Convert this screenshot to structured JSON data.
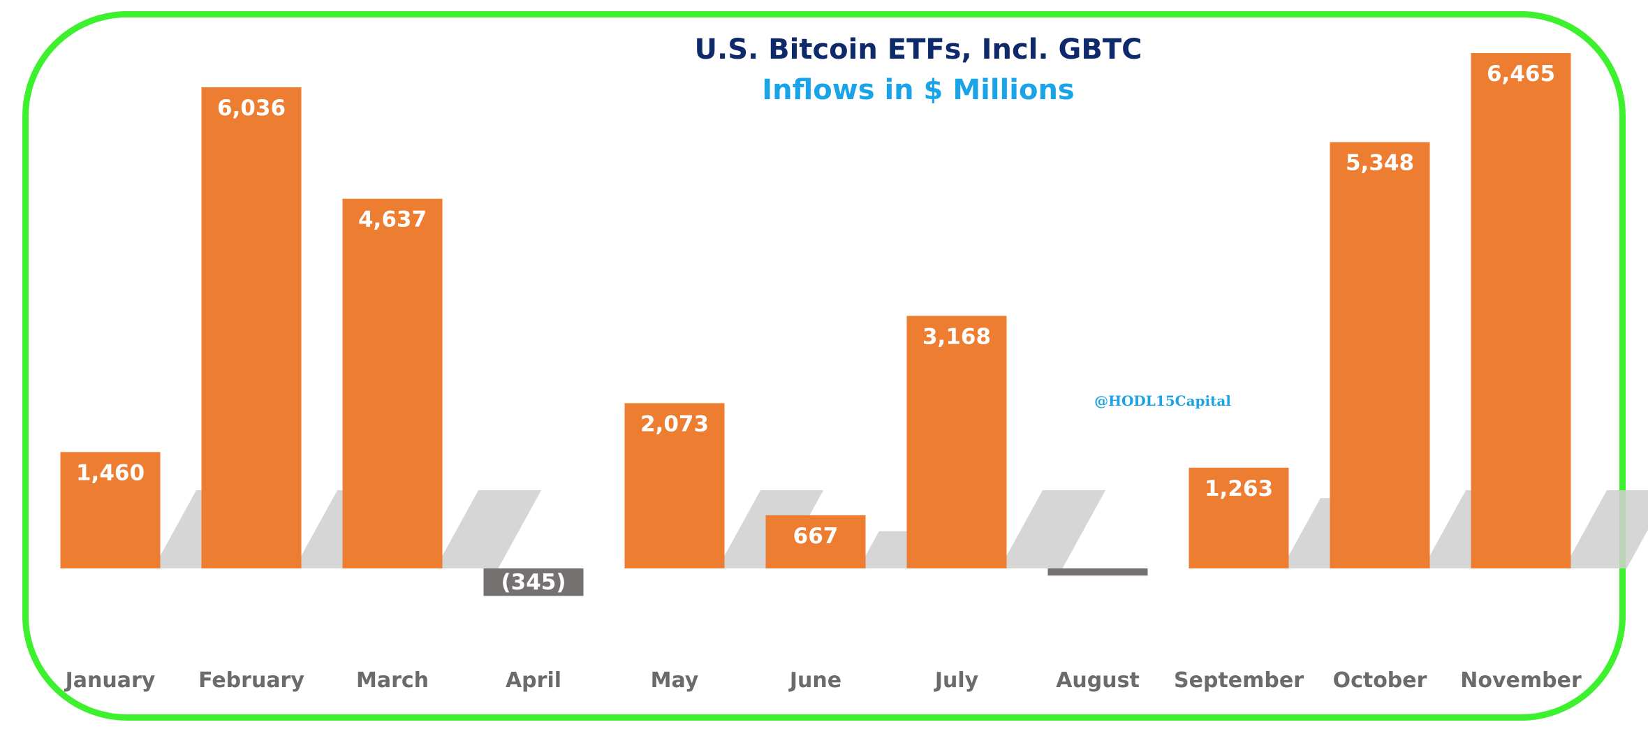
{
  "chart_data": {
    "type": "bar",
    "title": "U.S. Bitcoin ETFs, Incl. GBTC",
    "subtitle": "Inflows in $ Millions",
    "watermark": "@HODL15Capital",
    "categories": [
      "January",
      "February",
      "March",
      "April",
      "May",
      "June",
      "July",
      "August",
      "September",
      "October",
      "November"
    ],
    "values": [
      1460,
      6036,
      4637,
      -345,
      2073,
      667,
      3168,
      -90,
      1263,
      5348,
      6465
    ],
    "data_labels": [
      "1,460",
      "6,036",
      "4,637",
      "(345)",
      "2,073",
      "667",
      "3,168",
      "",
      "1,263",
      "5,348",
      "6,465"
    ],
    "xlabel": "",
    "ylabel": "",
    "ylim": [
      -345,
      6465
    ],
    "grid": false,
    "legend": "none"
  },
  "colors": {
    "positive_bar": "#ed7d31",
    "negative_bar": "#767171",
    "shadow": "#cfcfcf",
    "title": "#0e2a6b",
    "subtitle": "#1aa3e6",
    "watermark": "#1aa3e6",
    "border": "#3df12f",
    "category_label": "#6b6b6b",
    "value_label": "#ffffff"
  }
}
